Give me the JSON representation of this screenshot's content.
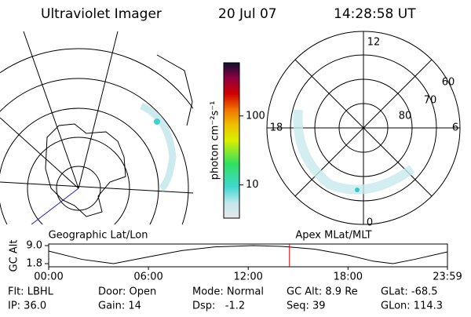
{
  "header": {
    "instrument": "Ultraviolet Imager",
    "date": "20 Jul 07",
    "time": "14:28:58 UT"
  },
  "colorbar": {
    "label": "photon cm⁻²s⁻¹",
    "lim": [
      3.3,
      590
    ],
    "log": true,
    "ticks": [
      10,
      100
    ]
  },
  "left_panel": {
    "title": "Geographic Lat/Lon"
  },
  "right_panel": {
    "title": "Apex MLat/MLT",
    "mlt_labels": [
      "12",
      "18",
      "6",
      "0"
    ],
    "mlat_labels": [
      "60",
      "70",
      "80"
    ]
  },
  "altitude_plot": {
    "ylabel": "GC Alt",
    "ylim": [
      1.8,
      9.0
    ],
    "yticks": [
      {
        "value": 9.0,
        "label": "9.0"
      },
      {
        "value": 1.8,
        "label": "1.8"
      }
    ],
    "xlim": [
      0,
      23.98
    ],
    "xticks": [
      {
        "value": 0,
        "label": "00:00"
      },
      {
        "value": 6,
        "label": "06:00"
      },
      {
        "value": 12,
        "label": "12:00"
      },
      {
        "value": 18,
        "label": "18:00"
      },
      {
        "value": 23.98,
        "label": "23:59"
      }
    ],
    "x": [
      0,
      2,
      3.9,
      6,
      8,
      10,
      12.3,
      14,
      16,
      18,
      19.5,
      20.7,
      22,
      23.98
    ],
    "values": [
      6.8,
      3.5,
      1.8,
      4.5,
      7.0,
      8.5,
      9.0,
      8.7,
      7.6,
      5.2,
      2.8,
      1.8,
      3.5,
      6.5
    ],
    "marker": 14.48,
    "marker_color": "#e00000"
  },
  "status": [
    [
      "Flt: LBHL",
      "Door: Open",
      "Mode: Normal",
      "GC Alt: 8.9 Re",
      "GLat: -68.5"
    ],
    [
      "IP: 36.0",
      "Gain: 14",
      "Dsp:   -1.2",
      "Seq: 39",
      "GLon: 114.3"
    ]
  ]
}
